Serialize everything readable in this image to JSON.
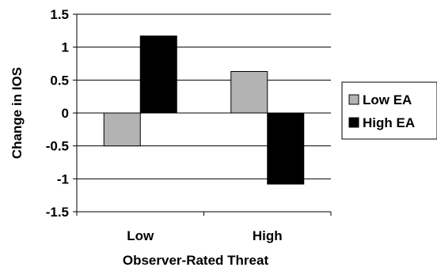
{
  "chart_data": {
    "type": "bar",
    "title": "",
    "xlabel": "Observer-Rated Threat",
    "ylabel": "Change in IOS",
    "categories": [
      "Low",
      "High"
    ],
    "series": [
      {
        "name": "Low EA",
        "values": [
          -0.5,
          0.63
        ],
        "color": "#b3b3b3"
      },
      {
        "name": "High EA",
        "values": [
          1.17,
          -1.08
        ],
        "color": "#000000"
      }
    ],
    "ylim": [
      -1.5,
      1.5
    ],
    "yticks": [
      "1.5",
      "1",
      "0.5",
      "0",
      "-0.5",
      "-1",
      "-1.5"
    ],
    "ytick_values": [
      1.5,
      1,
      0.5,
      0,
      -0.5,
      -1,
      -1.5
    ],
    "grid": true,
    "legend": "right"
  }
}
